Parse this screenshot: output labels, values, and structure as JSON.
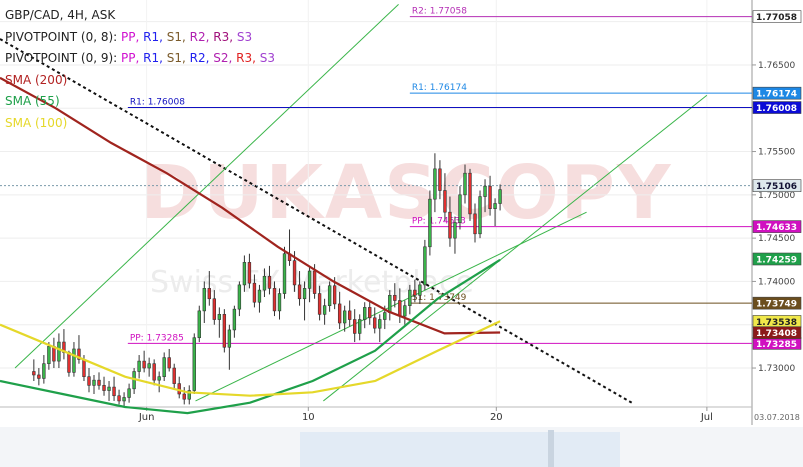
{
  "legend": {
    "title": "GBP/CAD, 4H, ASK",
    "pivot1_label": "PIVOTPOINT (0, 8): ",
    "pivot2_label": "PIVOTPOINT (0, 9): ",
    "pivot_items": [
      {
        "text": "PP",
        "color": "#d010d0"
      },
      {
        "text": "R1",
        "color": "#2020ee"
      },
      {
        "text": "S1",
        "color": "#7a5a2a"
      },
      {
        "text": "R2",
        "color": "#b020b0"
      },
      {
        "text": "R3",
        "color": "#a0107a"
      },
      {
        "text": "S3",
        "color": "#a040d0"
      }
    ],
    "pivot_items2": [
      {
        "text": "PP",
        "color": "#d010d0"
      },
      {
        "text": "R1",
        "color": "#2020ee"
      },
      {
        "text": "S1",
        "color": "#7a5a2a"
      },
      {
        "text": "R2",
        "color": "#2020ee"
      },
      {
        "text": "S2",
        "color": "#b020b0"
      },
      {
        "text": "R3",
        "color": "#e02020"
      },
      {
        "text": "S3",
        "color": "#a040d0"
      }
    ],
    "sma200": {
      "label": "SMA (200)",
      "color": "#b22222"
    },
    "sma55": {
      "label": "SMA (55)",
      "color": "#1fa04a"
    },
    "sma100": {
      "label": "SMA (100)",
      "color": "#e5d82a"
    }
  },
  "watermark": {
    "main": "DUKASCOPY",
    "sub": "Swiss FX Marketplace"
  },
  "chart_data": {
    "type": "candlestick",
    "title": "GBP/CAD, 4H, ASK",
    "ylim": [
      1.7255,
      1.7725
    ],
    "y_ticks": [
      1.73,
      1.735,
      1.74,
      1.745,
      1.75,
      1.755,
      1.76,
      1.765,
      1.77
    ],
    "y_tick_labels": [
      "1.73000",
      "",
      "1.74000",
      "1.74500",
      "1.75000",
      "1.75500",
      "",
      "1.76500",
      ""
    ],
    "x_labels": [
      "Jun",
      "10",
      "20",
      "Jul"
    ],
    "date_stamp": "03.07.2018",
    "levels": [
      {
        "name": "R2",
        "label": "R2: 1.77058",
        "value": 1.77058,
        "tag": "1.77058",
        "color": "#b52fb5",
        "tagbg": "#ffffff",
        "tagfg": "#222222",
        "x_from": 0.545
      },
      {
        "name": "R1a",
        "label": "R1: 1.76174",
        "value": 1.76174,
        "tag": "1.76174",
        "color": "#1e88e5",
        "tagbg": "#1e88e5",
        "tagfg": "#ffffff",
        "x_from": 0.545
      },
      {
        "name": "R1b",
        "label": "R1: 1.76008",
        "value": 1.76008,
        "tag": "1.76008",
        "color": "#1010c0",
        "tagbg": "#0b0bd6",
        "tagfg": "#ffffff",
        "x_from": 0.17
      },
      {
        "name": "PPa",
        "label": "PP: 1.74633",
        "value": 1.74633,
        "tag": "1.74633",
        "color": "#d010c0",
        "tagbg": "#d010c0",
        "tagfg": "#ffffff",
        "x_from": 0.545
      },
      {
        "name": "S1",
        "label": "S1: 1.73749",
        "value": 1.73749,
        "tag": "1.73749",
        "color": "#6b4e1e",
        "tagbg": "#6b4e1e",
        "tagfg": "#ffffff",
        "x_from": 0.545
      },
      {
        "name": "PPb",
        "label": "PP: 1.73285",
        "value": 1.73285,
        "tag": "1.73285",
        "color": "#d010c0",
        "tagbg": "#d010c0",
        "tagfg": "#ffffff",
        "x_from": 0.17
      }
    ],
    "current_price": {
      "value": 1.75106,
      "tag": "1.75106"
    },
    "indicator_tags": [
      {
        "value": 1.74259,
        "tag": "1.74259",
        "bg": "#1fa04a",
        "fg": "#ffffff"
      },
      {
        "value": 1.73538,
        "tag": "1.73538",
        "bg": "#f0e84a",
        "fg": "#222222"
      },
      {
        "value": 1.73408,
        "tag": "1.73408",
        "bg": "#8b1a1a",
        "fg": "#ffffff"
      }
    ],
    "candles": [
      [
        1.7296,
        1.731,
        1.7285,
        1.7292
      ],
      [
        1.7292,
        1.73,
        1.728,
        1.7288
      ],
      [
        1.7288,
        1.7315,
        1.7282,
        1.7305
      ],
      [
        1.7305,
        1.733,
        1.7298,
        1.7325
      ],
      [
        1.7325,
        1.7335,
        1.73,
        1.7308
      ],
      [
        1.7308,
        1.734,
        1.73,
        1.733
      ],
      [
        1.733,
        1.7345,
        1.731,
        1.7318
      ],
      [
        1.7318,
        1.732,
        1.729,
        1.7295
      ],
      [
        1.7295,
        1.733,
        1.729,
        1.7322
      ],
      [
        1.7322,
        1.7338,
        1.7305,
        1.731
      ],
      [
        1.731,
        1.7315,
        1.7285,
        1.729
      ],
      [
        1.729,
        1.73,
        1.7272,
        1.728
      ],
      [
        1.728,
        1.7292,
        1.727,
        1.7286
      ],
      [
        1.7286,
        1.7295,
        1.7275,
        1.728
      ],
      [
        1.728,
        1.729,
        1.7268,
        1.7274
      ],
      [
        1.7274,
        1.7285,
        1.7262,
        1.7278
      ],
      [
        1.7278,
        1.729,
        1.7262,
        1.7268
      ],
      [
        1.7268,
        1.7275,
        1.7258,
        1.7262
      ],
      [
        1.7262,
        1.7272,
        1.7255,
        1.7266
      ],
      [
        1.7266,
        1.7282,
        1.726,
        1.7276
      ],
      [
        1.7276,
        1.73,
        1.727,
        1.7296
      ],
      [
        1.7296,
        1.7315,
        1.7288,
        1.7308
      ],
      [
        1.7308,
        1.732,
        1.7295,
        1.73
      ],
      [
        1.73,
        1.7312,
        1.729,
        1.7305
      ],
      [
        1.7305,
        1.731,
        1.728,
        1.7286
      ],
      [
        1.7286,
        1.7296,
        1.7272,
        1.729
      ],
      [
        1.729,
        1.7318,
        1.7285,
        1.7312
      ],
      [
        1.7312,
        1.7322,
        1.7296,
        1.73
      ],
      [
        1.73,
        1.7305,
        1.7275,
        1.7282
      ],
      [
        1.7282,
        1.729,
        1.7265,
        1.727
      ],
      [
        1.727,
        1.7278,
        1.7258,
        1.7264
      ],
      [
        1.7264,
        1.728,
        1.7258,
        1.7274
      ],
      [
        1.7274,
        1.734,
        1.727,
        1.7335
      ],
      [
        1.7335,
        1.7372,
        1.733,
        1.7366
      ],
      [
        1.7366,
        1.74,
        1.7352,
        1.7392
      ],
      [
        1.7392,
        1.7412,
        1.7372,
        1.738
      ],
      [
        1.738,
        1.739,
        1.735,
        1.7356
      ],
      [
        1.7356,
        1.737,
        1.7335,
        1.7362
      ],
      [
        1.7362,
        1.7368,
        1.7318,
        1.7324
      ],
      [
        1.7324,
        1.735,
        1.7298,
        1.7344
      ],
      [
        1.7344,
        1.7372,
        1.7335,
        1.7368
      ],
      [
        1.7368,
        1.74,
        1.736,
        1.7396
      ],
      [
        1.7396,
        1.743,
        1.7388,
        1.7422
      ],
      [
        1.7422,
        1.7432,
        1.7392,
        1.7398
      ],
      [
        1.7398,
        1.7408,
        1.737,
        1.7376
      ],
      [
        1.7376,
        1.7396,
        1.7364,
        1.739
      ],
      [
        1.739,
        1.7415,
        1.7382,
        1.7406
      ],
      [
        1.7406,
        1.7418,
        1.7385,
        1.7392
      ],
      [
        1.7392,
        1.74,
        1.736,
        1.7366
      ],
      [
        1.7366,
        1.7392,
        1.7356,
        1.7386
      ],
      [
        1.7386,
        1.744,
        1.738,
        1.7432
      ],
      [
        1.7432,
        1.746,
        1.7418,
        1.7424
      ],
      [
        1.7424,
        1.7435,
        1.7388,
        1.7396
      ],
      [
        1.7396,
        1.7412,
        1.7372,
        1.738
      ],
      [
        1.738,
        1.74,
        1.7355,
        1.7392
      ],
      [
        1.7392,
        1.7418,
        1.7376,
        1.7412
      ],
      [
        1.7412,
        1.742,
        1.738,
        1.7386
      ],
      [
        1.7386,
        1.7395,
        1.7355,
        1.7362
      ],
      [
        1.7362,
        1.738,
        1.735,
        1.7372
      ],
      [
        1.7372,
        1.74,
        1.7365,
        1.7395
      ],
      [
        1.7395,
        1.7405,
        1.7368,
        1.7374
      ],
      [
        1.7374,
        1.7388,
        1.7345,
        1.7352
      ],
      [
        1.7352,
        1.7372,
        1.7342,
        1.7366
      ],
      [
        1.7366,
        1.7378,
        1.7348,
        1.7356
      ],
      [
        1.7356,
        1.7368,
        1.733,
        1.734
      ],
      [
        1.734,
        1.7362,
        1.7332,
        1.7356
      ],
      [
        1.7356,
        1.7376,
        1.7346,
        1.737
      ],
      [
        1.737,
        1.7378,
        1.735,
        1.7358
      ],
      [
        1.7358,
        1.737,
        1.734,
        1.7346
      ],
      [
        1.7346,
        1.7362,
        1.733,
        1.7356
      ],
      [
        1.7356,
        1.7372,
        1.7345,
        1.7364
      ],
      [
        1.7364,
        1.739,
        1.7355,
        1.7384
      ],
      [
        1.7384,
        1.7398,
        1.737,
        1.7378
      ],
      [
        1.7378,
        1.7392,
        1.7352,
        1.736
      ],
      [
        1.736,
        1.7378,
        1.735,
        1.7372
      ],
      [
        1.7372,
        1.7396,
        1.7362,
        1.739
      ],
      [
        1.739,
        1.7402,
        1.7376,
        1.7384
      ],
      [
        1.7384,
        1.74,
        1.7374,
        1.7396
      ],
      [
        1.7396,
        1.7448,
        1.739,
        1.744
      ],
      [
        1.744,
        1.7505,
        1.743,
        1.7495
      ],
      [
        1.7495,
        1.7548,
        1.748,
        1.753
      ],
      [
        1.753,
        1.754,
        1.7495,
        1.7505
      ],
      [
        1.7505,
        1.7525,
        1.747,
        1.748
      ],
      [
        1.748,
        1.7498,
        1.744,
        1.745
      ],
      [
        1.745,
        1.7475,
        1.7432,
        1.7468
      ],
      [
        1.7468,
        1.751,
        1.746,
        1.75
      ],
      [
        1.75,
        1.7535,
        1.749,
        1.7525
      ],
      [
        1.7525,
        1.753,
        1.747,
        1.7478
      ],
      [
        1.7478,
        1.749,
        1.7445,
        1.7455
      ],
      [
        1.7455,
        1.7505,
        1.745,
        1.7498
      ],
      [
        1.7498,
        1.7518,
        1.748,
        1.751
      ],
      [
        1.751,
        1.7522,
        1.7476,
        1.7484
      ],
      [
        1.7484,
        1.7496,
        1.7464,
        1.749
      ],
      [
        1.749,
        1.7512,
        1.7482,
        1.7506
      ]
    ],
    "sma200": [
      1.7635,
      1.76,
      1.756,
      1.7525,
      1.7485,
      1.744,
      1.74,
      1.7365,
      1.734,
      1.7341
    ],
    "sma55": [
      1.7285,
      1.727,
      1.7255,
      1.7248,
      1.726,
      1.7285,
      1.732,
      1.738,
      1.7425
    ],
    "sma100": [
      1.735,
      1.732,
      1.729,
      1.7272,
      1.7268,
      1.7272,
      1.7285,
      1.732,
      1.7354
    ],
    "trendlines": [
      {
        "type": "dotted",
        "p1": [
          0.0,
          1.768
        ],
        "p2": [
          0.84,
          1.726
        ]
      },
      {
        "type": "channel",
        "p1": [
          0.02,
          1.73
        ],
        "p2": [
          0.53,
          1.772
        ]
      },
      {
        "type": "channel",
        "p1": [
          0.43,
          1.7262
        ],
        "p2": [
          0.94,
          1.7615
        ]
      },
      {
        "type": "channel",
        "p1": [
          0.26,
          1.7262
        ],
        "p2": [
          0.78,
          1.748
        ]
      }
    ]
  }
}
